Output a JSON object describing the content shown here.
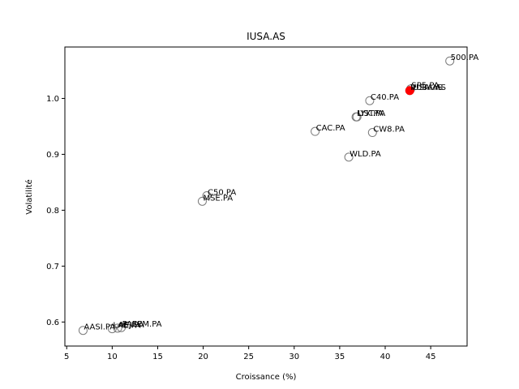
{
  "chart_data": {
    "type": "scatter",
    "title": "IUSA.AS",
    "xlabel": "Croissance (%)",
    "ylabel": "Volatilité",
    "xlim": [
      4.8,
      49.0
    ],
    "ylim": [
      0.557,
      1.092
    ],
    "xticks": [
      5,
      10,
      15,
      20,
      25,
      30,
      35,
      40,
      45
    ],
    "yticks": [
      0.6,
      0.7,
      0.8,
      0.9,
      1.0
    ],
    "ytick_labels": [
      "0.6",
      "0.7",
      "0.8",
      "0.9",
      "1.0"
    ],
    "grid": false,
    "highlight": "IUSA.AS",
    "colors": {
      "point_edge": "#7a7a7a",
      "highlight": "#ff0000",
      "axis": "#000000"
    },
    "points": [
      {
        "label": "500.PA",
        "x": 47.1,
        "y": 1.067
      },
      {
        "label": "SP5.PA",
        "x": 42.8,
        "y": 1.017
      },
      {
        "label": "VUSA.AS",
        "x": 42.7,
        "y": 1.014
      },
      {
        "label": "IUSA.AS",
        "x": 42.7,
        "y": 1.014
      },
      {
        "label": "C40.PA",
        "x": 38.3,
        "y": 0.996
      },
      {
        "label": "LYX.PA",
        "x": 36.8,
        "y": 0.967
      },
      {
        "label": "UST.PA",
        "x": 36.9,
        "y": 0.967
      },
      {
        "label": "CAC.PA",
        "x": 32.3,
        "y": 0.941
      },
      {
        "label": "CW8.PA",
        "x": 38.6,
        "y": 0.939
      },
      {
        "label": "WLD.PA",
        "x": 36.0,
        "y": 0.895
      },
      {
        "label": "C50.PA",
        "x": 20.4,
        "y": 0.826
      },
      {
        "label": "MSE.PA",
        "x": 19.9,
        "y": 0.816
      },
      {
        "label": "AASI.PA",
        "x": 6.8,
        "y": 0.585
      },
      {
        "label": "LAE.PA",
        "x": 10.0,
        "y": 0.588
      },
      {
        "label": "AEJ.PA",
        "x": 10.6,
        "y": 0.589
      },
      {
        "label": "PAEEM.PA",
        "x": 11.0,
        "y": 0.59
      }
    ]
  }
}
